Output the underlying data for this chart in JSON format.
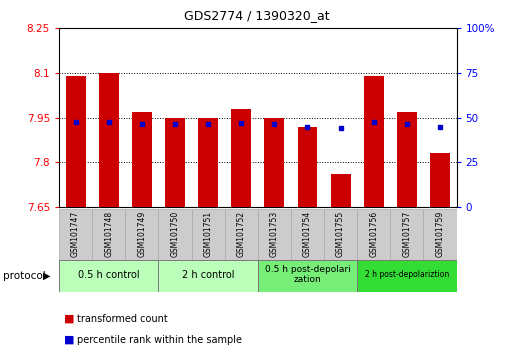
{
  "title": "GDS2774 / 1390320_at",
  "samples": [
    "GSM101747",
    "GSM101748",
    "GSM101749",
    "GSM101750",
    "GSM101751",
    "GSM101752",
    "GSM101753",
    "GSM101754",
    "GSM101755",
    "GSM101756",
    "GSM101757",
    "GSM101759"
  ],
  "bar_values": [
    8.09,
    8.1,
    7.97,
    7.95,
    7.95,
    7.98,
    7.95,
    7.92,
    7.76,
    8.09,
    7.97,
    7.83
  ],
  "blue_dot_values": [
    7.935,
    7.935,
    7.928,
    7.93,
    7.928,
    7.932,
    7.93,
    7.918,
    7.916,
    7.936,
    7.928,
    7.918
  ],
  "bar_bottom": 7.65,
  "ylim_left": [
    7.65,
    8.25
  ],
  "ylim_right": [
    0,
    100
  ],
  "yticks_left": [
    7.65,
    7.8,
    7.95,
    8.1,
    8.25
  ],
  "ytick_labels_left": [
    "7.65",
    "7.8",
    "7.95",
    "8.1",
    "8.25"
  ],
  "yticks_right": [
    0,
    25,
    50,
    75,
    100
  ],
  "ytick_labels_right": [
    "0",
    "25",
    "50",
    "75",
    "100%"
  ],
  "bar_color": "#cc0000",
  "dot_color": "#0000cc",
  "protocol_groups": [
    {
      "label": "0.5 h control",
      "start": 0,
      "end": 3,
      "color": "#bbffbb"
    },
    {
      "label": "2 h control",
      "start": 3,
      "end": 6,
      "color": "#bbffbb"
    },
    {
      "label": "0.5 h post-depolarization",
      "start": 6,
      "end": 9,
      "color": "#77ee77"
    },
    {
      "label": "2 h post-depolariztion",
      "start": 9,
      "end": 12,
      "color": "#33dd33"
    }
  ],
  "protocol_label": "protocol",
  "legend_items": [
    {
      "label": "transformed count",
      "color": "#cc0000"
    },
    {
      "label": "percentile rank within the sample",
      "color": "#0000cc"
    }
  ]
}
